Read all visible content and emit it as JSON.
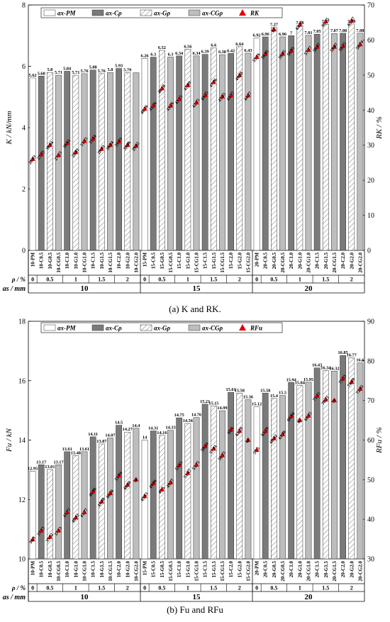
{
  "captions": [
    "(a) K and RK.",
    "(b) Fu and RFu"
  ],
  "chart_data": [
    {
      "type": "bar",
      "ylabel": "K / kN/mm",
      "y2label": "RK / %",
      "ylim": [
        0,
        8
      ],
      "y2lim": [
        0,
        70
      ],
      "yticks": [
        0,
        2,
        4,
        6,
        8
      ],
      "y2ticks": [
        0,
        10,
        20,
        30,
        40,
        50,
        60,
        70
      ],
      "legend_position": "top",
      "legend": [
        "ax-PM",
        "ax-Cρ",
        "ax-Gρ",
        "ax-CGρ",
        "RK"
      ],
      "categories": [
        "10-PM",
        "10-C0.5",
        "10-G0.5",
        "10-CG0.5",
        "10-C1.0",
        "10-G1.0",
        "10-CG1.0",
        "10-C1.5",
        "10-G1.5",
        "10-CG1.5",
        "10-C2.0",
        "10-G2.0",
        "10-CG2.0",
        "15-PM",
        "15-C0.5",
        "15-G0.5",
        "15-CG0.5",
        "15-C1.0",
        "15-G1.0",
        "15-CG1.0",
        "15-C1.5",
        "15-G1.5",
        "15-CG1.5",
        "15-C2.0",
        "15-G2.0",
        "15-CG2.0",
        "20-PM",
        "20-C0.5",
        "20-G0.5",
        "20-CG0.5",
        "20-C1.0",
        "20-G1.0",
        "20-CG1.0",
        "20-C1.5",
        "20-G1.5",
        "20-CG1.5",
        "20-C2.0",
        "20-G2.0",
        "20-CG2.0"
      ],
      "bar_values": [
        5.62,
        5.68,
        5.8,
        5.71,
        5.84,
        5.71,
        5.76,
        5.88,
        5.76,
        5.8,
        5.93,
        5.79,
        5.79,
        6.26,
        6.3,
        6.52,
        6.3,
        6.34,
        6.56,
        6.34,
        6.39,
        6.6,
        6.38,
        6.42,
        6.64,
        6.43,
        6.92,
        6.96,
        7.27,
        6.96,
        7.0,
        7.33,
        7.01,
        7.05,
        7.37,
        7.07,
        7.08,
        7.38,
        7.08
      ],
      "bar_labels": [
        "5.62",
        "5.68",
        "5.8",
        "5.71",
        "5.84",
        "5.71",
        "5.76",
        "5.88",
        "5.76",
        "5.8",
        "5.93",
        "5.79",
        "",
        "6.26",
        "6.3",
        "6.52",
        "6.3",
        "6.34",
        "6.56",
        "6.34",
        "6.39",
        "6.6",
        "6.38",
        "6.42",
        "6.64",
        "6.43",
        "6.92",
        "6.96",
        "7.27",
        "6.96",
        "7",
        "7.33",
        "7.01",
        "7.05",
        "7.37",
        "7.07",
        "7.08",
        "7.38",
        "7.08"
      ],
      "r_values": [
        26.03,
        27.35,
        30.04,
        27.13,
        30.61,
        28.01,
        31.15,
        31.84,
        28.93,
        30.04,
        31.03,
        30.06,
        29.82,
        40.36,
        41.26,
        46.18,
        41.26,
        43.15,
        47.09,
        42.15,
        44.25,
        47.96,
        43.85,
        44.17,
        49.88,
        44.17,
        55.16,
        56.05,
        63,
        56.05,
        56.95,
        64.35,
        57.17,
        58.07,
        65.25,
        58.07,
        58.25,
        65.47,
        58.74
      ],
      "r_labels": [
        "26.03",
        "27.35",
        "30.04",
        "27.13",
        "30.61",
        "28.01",
        "31.15",
        "31.84",
        "28.93",
        "30.04",
        "31.03",
        "30.06",
        "29.82",
        "40.36",
        "41.26",
        "46.18",
        "41.26",
        "43.15",
        "47.09",
        "42.15",
        "44.25",
        "47.96",
        "43.85",
        "44.17",
        "49.88",
        "44.17",
        "55.16",
        "56.05",
        "63",
        "56.05",
        "56.95",
        "64.35",
        "57.17",
        "58.07",
        "65.25",
        "58.07",
        "58.25",
        "65.47",
        "58.74"
      ],
      "table": {
        "row1_label": "ρ / %",
        "row2_label": "as / mm",
        "rho_labels": [
          "0",
          "0.5",
          "1",
          "1.5",
          "2",
          "0",
          "0.5",
          "1",
          "1.5",
          "2",
          "0",
          "0.5",
          "1",
          "1.5",
          "2"
        ],
        "as_labels": [
          "10",
          "15",
          "20"
        ]
      }
    },
    {
      "type": "bar",
      "ylabel": "Fu / kN",
      "y2label": "RFu / %",
      "ylim": [
        10,
        18
      ],
      "y2lim": [
        30,
        90
      ],
      "yticks": [
        10,
        12,
        14,
        16,
        18
      ],
      "y2ticks": [
        30,
        40,
        50,
        60,
        70,
        80,
        90
      ],
      "legend_position": "top",
      "legend": [
        "ax-PM",
        "ax-Cρ",
        "ax-Gρ",
        "ax-CGρ",
        "RFu"
      ],
      "categories": [
        "10-PM",
        "10-C0.5",
        "10-G0.5",
        "10-CG0.5",
        "10-C1.0",
        "10-G1.0",
        "10-CG1.0",
        "10-C1.5",
        "10-G1.5",
        "10-CG1.5",
        "10-C2.0",
        "10-G2.0",
        "10-CG2.0",
        "15-PM",
        "15-C0.5",
        "15-G0.5",
        "15-CG0.5",
        "15-C1.0",
        "15-G1.0",
        "15-CG1.0",
        "15-C1.5",
        "15-G1.5",
        "15-CG1.5",
        "15-C2.0",
        "15-G2.0",
        "15-CG2.0",
        "20-PM",
        "20-C0.5",
        "20-G0.5",
        "20-CG0.5",
        "20-C1.0",
        "20-G1.0",
        "20-CG1.0",
        "20-C1.5",
        "20-G1.5",
        "20-CG1.5",
        "20-C2.0",
        "20-G2.0",
        "20-CG2.0"
      ],
      "bar_values": [
        12.95,
        13.17,
        13.01,
        13.17,
        13.61,
        13.48,
        13.61,
        14.11,
        13.87,
        14.07,
        14.5,
        14.27,
        14.4,
        14.0,
        14.31,
        14.16,
        14.33,
        14.75,
        14.56,
        14.76,
        15.21,
        15.15,
        14.99,
        15.61,
        15.58,
        15.36,
        15.12,
        15.58,
        15.4,
        15.5,
        15.94,
        15.84,
        15.95,
        16.43,
        16.34,
        16.32,
        16.85,
        16.77,
        16.6
      ],
      "bar_labels": [
        "12.95",
        "13.17",
        "13.01",
        "13.17",
        "13.61",
        "13.48",
        "13.61",
        "14.11",
        "13.87",
        "14.07",
        "14.5",
        "14.27",
        "14.4",
        "14",
        "14.31",
        "14.16",
        "14.33",
        "14.75",
        "14.56",
        "14.76",
        "15.21",
        "15.15",
        "14.99",
        "15.61",
        "15.58",
        "15.36",
        "15.12",
        "15.58",
        "15.4",
        "15.5",
        "15.94",
        "15.84",
        "15.95",
        "16.43",
        "16.34",
        "16.32",
        "16.85",
        "16.77",
        "16.6"
      ],
      "r_values": [
        34.9,
        37.13,
        35.52,
        37.13,
        41.77,
        40.42,
        41.77,
        46.98,
        44.48,
        46.56,
        51.04,
        48.68,
        50,
        45.83,
        49.06,
        47.5,
        49.27,
        53.65,
        51.67,
        53.75,
        58.44,
        57.81,
        56.15,
        62.6,
        62.29,
        60,
        57.5,
        62.29,
        60.42,
        61.46,
        66.04,
        65,
        66.15,
        71.15,
        70.21,
        70,
        75.53,
        74.69,
        72.92
      ],
      "r_labels": [
        "34.9",
        "37.13",
        "35.52",
        "37.13",
        "41.77",
        "40.42",
        "41.77",
        "46.98",
        "44.48",
        "46.56",
        "51.04",
        "48.68",
        "50",
        "45.83",
        "49.06",
        "47.5",
        "49.27",
        "53.65",
        "51.67",
        "53.75",
        "58.44",
        "57.81",
        "56.15",
        "62.6",
        "62.29",
        "60",
        "57.5",
        "62.29",
        "60.42",
        "61.46",
        "66.04",
        "65",
        "66.15",
        "71.15",
        "70.21",
        "70",
        "75.53",
        "74.69",
        "72.92"
      ],
      "table": {
        "row1_label": "ρ / %",
        "row2_label": "as / mm",
        "rho_labels": [
          "0",
          "0.5",
          "1",
          "1.5",
          "2",
          "0",
          "0.5",
          "1",
          "1.5",
          "2",
          "0",
          "0.5",
          "1",
          "1.5",
          "2"
        ],
        "as_labels": [
          "10",
          "15",
          "20"
        ]
      }
    }
  ]
}
